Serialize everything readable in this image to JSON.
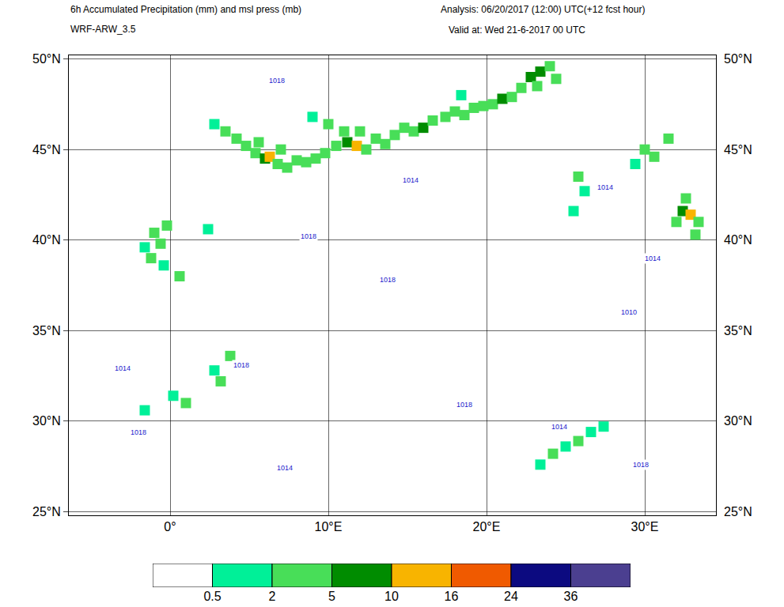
{
  "chart_data": {
    "type": "map",
    "title": "6h Accumulated Precipitation (mm) and msl press (mb)",
    "subtitle": "WRF-ARW_3.5",
    "annotations": [
      "Analysis: 06/20/2017 (12:00) UTC(+12 fcst hour)",
      "Valid at: Wed 21-6-2017 00 UTC"
    ],
    "xlim": [
      -6.4,
      34.5
    ],
    "xticks": [
      {
        "value": 0,
        "label": "0°"
      },
      {
        "value": 10,
        "label": "10°E"
      },
      {
        "value": 20,
        "label": "20°E"
      },
      {
        "value": 30,
        "label": "30°E"
      }
    ],
    "ylim": [
      24.8,
      50.2
    ],
    "yticks": [
      {
        "value": 25,
        "label": "25°N"
      },
      {
        "value": 30,
        "label": "30°N"
      },
      {
        "value": 35,
        "label": "35°N"
      },
      {
        "value": 40,
        "label": "40°N"
      },
      {
        "value": 45,
        "label": "45°N"
      },
      {
        "value": 50,
        "label": "50°N"
      }
    ],
    "grid": true,
    "precipitation": [
      [
        3.5,
        46,
        2
      ],
      [
        4.2,
        45.6,
        3
      ],
      [
        4.8,
        45.2,
        3
      ],
      [
        5.4,
        44.8,
        4
      ],
      [
        6.0,
        44.5,
        6
      ],
      [
        6.3,
        44.6,
        12
      ],
      [
        6.8,
        44.2,
        4
      ],
      [
        5.6,
        45.4,
        2
      ],
      [
        7.4,
        44.0,
        3
      ],
      [
        8.0,
        44.4,
        2
      ],
      [
        8.6,
        44.3,
        3
      ],
      [
        9.2,
        44.5,
        3
      ],
      [
        9.8,
        44.8,
        2
      ],
      [
        7.0,
        45.0,
        2
      ],
      [
        2.8,
        46.4,
        1
      ],
      [
        10.5,
        45.2,
        3
      ],
      [
        11.2,
        45.4,
        6
      ],
      [
        11.8,
        45.2,
        14
      ],
      [
        12.4,
        45.0,
        4
      ],
      [
        11.0,
        46.0,
        2
      ],
      [
        12.0,
        46.0,
        2
      ],
      [
        13.0,
        45.6,
        3
      ],
      [
        13.6,
        45.3,
        2
      ],
      [
        14.2,
        45.8,
        3
      ],
      [
        14.8,
        46.2,
        2
      ],
      [
        15.4,
        46.0,
        4
      ],
      [
        16.0,
        46.2,
        7
      ],
      [
        16.6,
        46.6,
        2
      ],
      [
        10.0,
        46.4,
        2
      ],
      [
        9.0,
        46.8,
        1
      ],
      [
        17.4,
        46.8,
        2
      ],
      [
        18.0,
        47.1,
        3
      ],
      [
        18.6,
        46.9,
        2
      ],
      [
        19.2,
        47.3,
        4
      ],
      [
        19.8,
        47.4,
        3
      ],
      [
        20.4,
        47.5,
        2
      ],
      [
        21.0,
        47.8,
        6
      ],
      [
        21.6,
        47.9,
        3
      ],
      [
        22.2,
        48.4,
        4
      ],
      [
        22.8,
        49.0,
        8
      ],
      [
        23.4,
        49.3,
        5
      ],
      [
        23.2,
        48.5,
        3
      ],
      [
        24.0,
        49.6,
        3
      ],
      [
        24.4,
        48.9,
        2
      ],
      [
        18.4,
        48.0,
        1
      ],
      [
        32.4,
        41.6,
        5
      ],
      [
        32.9,
        41.4,
        14
      ],
      [
        32.0,
        41.0,
        3
      ],
      [
        33.4,
        41.0,
        2
      ],
      [
        32.6,
        42.3,
        2
      ],
      [
        33.2,
        40.3,
        3
      ],
      [
        30.0,
        45.0,
        2
      ],
      [
        30.6,
        44.6,
        2
      ],
      [
        31.5,
        45.6,
        2
      ],
      [
        29.4,
        44.2,
        1
      ],
      [
        25.8,
        43.5,
        2
      ],
      [
        26.2,
        42.7,
        1
      ],
      [
        25.5,
        41.6,
        1
      ],
      [
        -1.0,
        40.4,
        2
      ],
      [
        -0.6,
        39.8,
        3
      ],
      [
        -0.2,
        40.8,
        2
      ],
      [
        -1.2,
        39.0,
        2
      ],
      [
        -0.4,
        38.6,
        1
      ],
      [
        0.6,
        38.0,
        2
      ],
      [
        -1.6,
        39.6,
        1
      ],
      [
        2.4,
        40.6,
        1
      ],
      [
        3.8,
        33.6,
        2
      ],
      [
        2.8,
        32.8,
        1
      ],
      [
        3.2,
        32.2,
        2
      ],
      [
        1.0,
        31.0,
        2
      ],
      [
        0.2,
        31.4,
        1
      ],
      [
        -1.6,
        30.6,
        1
      ],
      [
        23.4,
        27.6,
        1
      ],
      [
        24.2,
        28.2,
        2
      ],
      [
        25.0,
        28.6,
        1
      ],
      [
        25.8,
        28.9,
        2
      ],
      [
        26.6,
        29.4,
        1
      ],
      [
        27.4,
        29.7,
        1
      ]
    ],
    "isobar_labels": [
      {
        "text": "1018",
        "lon": 6.75,
        "lat": 48.8
      },
      {
        "text": "1014",
        "lon": 15.2,
        "lat": 43.3
      },
      {
        "text": "1018",
        "lon": 8.75,
        "lat": 40.2
      },
      {
        "text": "1018",
        "lon": 13.75,
        "lat": 37.8
      },
      {
        "text": "1014",
        "lon": 30.5,
        "lat": 39.0
      },
      {
        "text": "1010",
        "lon": 29.0,
        "lat": 36.0
      },
      {
        "text": "1014",
        "lon": -3.0,
        "lat": 32.9
      },
      {
        "text": "1018",
        "lon": 4.5,
        "lat": 33.1
      },
      {
        "text": "1018",
        "lon": -2.0,
        "lat": 29.4
      },
      {
        "text": "1014",
        "lon": 7.25,
        "lat": 27.4
      },
      {
        "text": "1018",
        "lon": 18.6,
        "lat": 30.9
      },
      {
        "text": "1014",
        "lon": 24.6,
        "lat": 29.7
      },
      {
        "text": "1018",
        "lon": 29.75,
        "lat": 27.6
      },
      {
        "text": "1014",
        "lon": 27.5,
        "lat": 42.9
      }
    ],
    "colorbar": {
      "bounds": [
        0.5,
        2,
        5,
        10,
        16,
        24,
        36
      ],
      "colors": [
        "#ffffff",
        "#00f098",
        "#48de58",
        "#008c00",
        "#f8b400",
        "#f05a00",
        "#0c0a80",
        "#4b3f90"
      ]
    }
  }
}
